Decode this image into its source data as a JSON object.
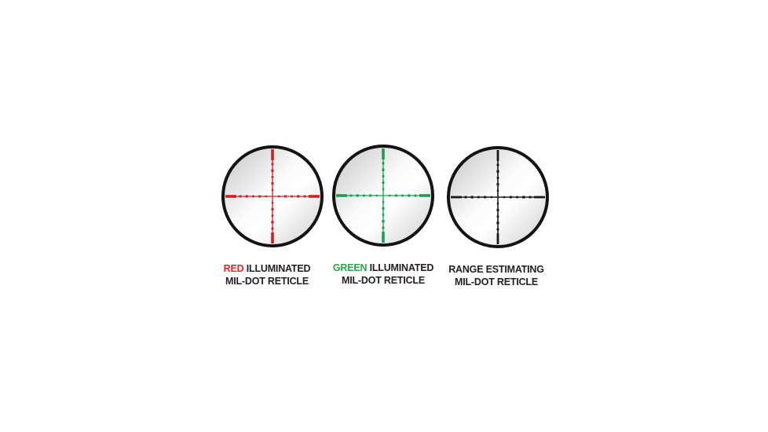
{
  "figure": {
    "background_color": "#ffffff",
    "description": "Three riflescope reticle option diagrams"
  },
  "reticle_geometry": {
    "rim_color": "#141414",
    "rim_stroke_width": 4,
    "glass_gradient": [
      "#c3c3c3",
      "#fafafa",
      "#ffffff",
      "#cccccc"
    ],
    "outer_segment_length": 14,
    "dot_spacing": 8.2,
    "dots_per_side": 5,
    "dot_sizes": [
      2.4,
      3.0,
      2.7,
      3.2,
      2.9
    ]
  },
  "reticles": [
    {
      "id": "red-illuminated",
      "crosshair_color": "#ce2127",
      "inner_line_width": 1.3,
      "outer_segment_width": 3.6,
      "caption": {
        "part1": {
          "text": "RED",
          "color": "#e8252b"
        },
        "part2": {
          "text": " ILLUMINATED",
          "color": "#231f20"
        },
        "line2": "MIL-DOT RETICLE"
      }
    },
    {
      "id": "green-illuminated",
      "crosshair_color": "#1e9b54",
      "inner_line_width": 1.3,
      "outer_segment_width": 3.6,
      "caption": {
        "part1": {
          "text": "GREEN",
          "color": "#2aa64c"
        },
        "part2": {
          "text": " ILLUMINATED",
          "color": "#231f20"
        },
        "line2": "MIL-DOT RETICLE"
      }
    },
    {
      "id": "range-estimating",
      "crosshair_color": "#1a1a1a",
      "inner_line_width": 1.6,
      "outer_segment_width": 2.8,
      "caption": {
        "part1": {
          "text": "RANGE ESTIMATING",
          "color": "#231f20"
        },
        "part2": {
          "text": "",
          "color": "#231f20"
        },
        "line2": "MIL-DOT RETICLE"
      }
    }
  ]
}
